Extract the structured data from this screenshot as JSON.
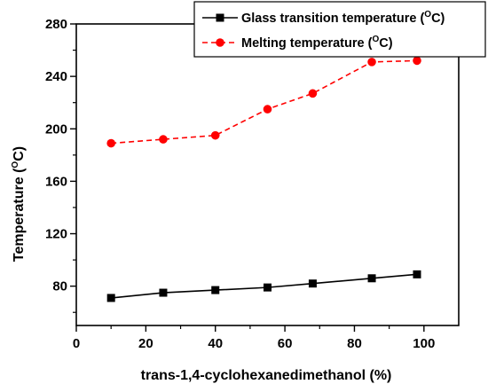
{
  "chart_data": {
    "type": "line",
    "xlabel": "trans-1,4-cyclohexanedimethanol (%)",
    "ylabel_main": "Temperature (",
    "ylabel_sup": "O",
    "ylabel_end": "C)",
    "xlim": [
      0,
      110
    ],
    "ylim": [
      50,
      280
    ],
    "xticks": [
      0,
      20,
      40,
      60,
      80,
      100
    ],
    "xtick_labels": [
      "0",
      "20",
      "40",
      "60",
      "80",
      "100"
    ],
    "yticks": [
      80,
      120,
      160,
      200,
      240,
      280
    ],
    "ytick_labels": [
      "80",
      "120",
      "160",
      "200",
      "240",
      "280"
    ],
    "grid": false,
    "legend_position": "top-right",
    "x": [
      10,
      25,
      40,
      55,
      68,
      85,
      98
    ],
    "series": [
      {
        "name_main": "Glass transition temperature (",
        "name_sup": "O",
        "name_end": "C)",
        "values": [
          71,
          75,
          77,
          79,
          82,
          86,
          89
        ],
        "color": "#000000",
        "marker": "square",
        "line": "solid"
      },
      {
        "name_main": "Melting temperature (",
        "name_sup": "O",
        "name_end": "C)",
        "values": [
          189,
          192,
          195,
          215,
          227,
          251,
          252
        ],
        "color": "#ff0000",
        "marker": "circle",
        "line": "dashed"
      }
    ]
  }
}
